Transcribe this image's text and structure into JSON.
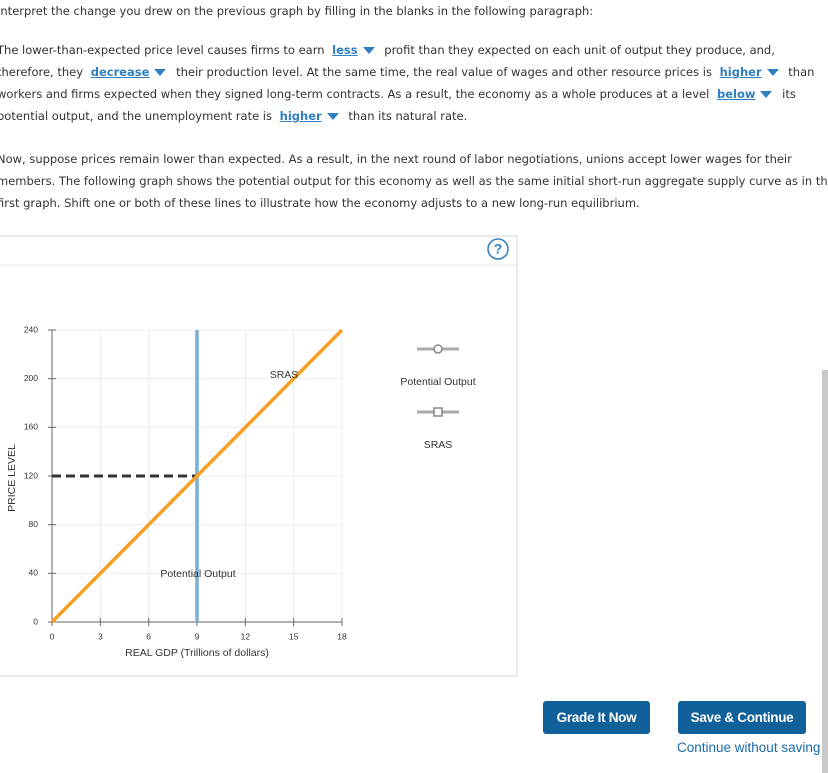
{
  "instruction": "Interpret the change you drew on the previous graph by filling in the blanks in the following paragraph:",
  "paragraph1": [
    {
      "text": "The lower-than-expected price level causes firms to earn"
    },
    {
      "select": "less"
    },
    {
      "text": "profit than they expected on each unit of output they produce, and, therefore, they"
    },
    {
      "select": "decrease"
    },
    {
      "text": "their production level. At the same time, the real value of wages and other resource prices is"
    },
    {
      "select": "higher"
    },
    {
      "text": "than workers and firms expected when they signed long-term contracts. As a result, the economy as a whole produces at a level"
    },
    {
      "select": "below"
    },
    {
      "text": "its potential output, and the unemployment rate is"
    },
    {
      "select": "higher"
    },
    {
      "text": "than its natural rate."
    }
  ],
  "paragraph2": "Now, suppose prices remain lower than expected. As a result, in the next round of labor negotiations, unions accept lower wages for their members. The following graph shows the potential output for this economy as well as the same initial short-run aggregate supply curve as in the first graph. Shift one or both of these lines to illustrate how the economy adjusts to a new long-run equilibrium.",
  "help": "?",
  "chart_data": {
    "type": "line",
    "x_label": "REAL GDP (Trillions of dollars)",
    "y_label": "PRICE LEVEL",
    "xlim": [
      0,
      18
    ],
    "ylim": [
      0,
      240
    ],
    "xticks": [
      0,
      3,
      6,
      9,
      12,
      15,
      18
    ],
    "yticks": [
      0,
      40,
      80,
      120,
      160,
      200,
      240
    ],
    "grid": true,
    "series": [
      {
        "name": "Potential Output",
        "color": "#7aaed6",
        "x": [
          9,
          9
        ],
        "values": [
          0,
          240
        ]
      },
      {
        "name": "SRAS",
        "color": "#f5a023",
        "x": [
          0,
          18
        ],
        "values": [
          0,
          240
        ]
      }
    ],
    "reference_lines": [
      {
        "color": "#333333",
        "x": [
          0,
          9
        ],
        "values": [
          120,
          120
        ]
      }
    ]
  },
  "buttons": [
    "Grade It Now",
    "Save & Continue"
  ],
  "link": "Continue without saving"
}
